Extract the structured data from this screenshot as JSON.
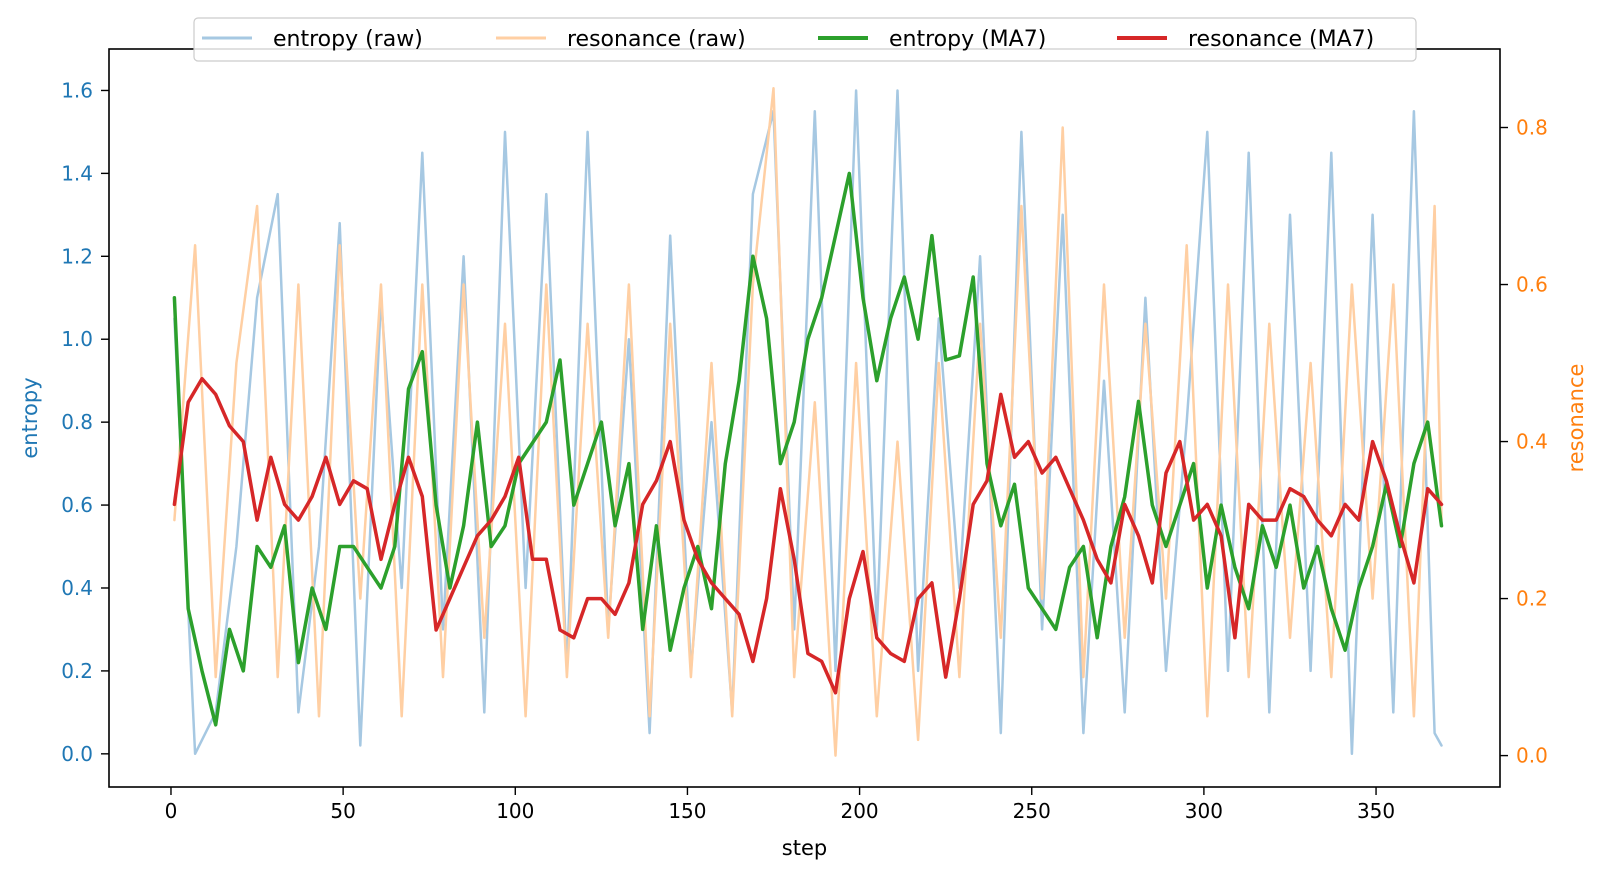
{
  "chart_data": {
    "type": "line",
    "title": "",
    "xlabel": "step",
    "ylabel_left": "entropy",
    "ylabel_right": "resonance",
    "xlim": [
      -18,
      386
    ],
    "ylim_left": [
      -0.08,
      1.7
    ],
    "ylim_right": [
      -0.04,
      0.9
    ],
    "x_ticks": [
      0,
      50,
      100,
      150,
      200,
      250,
      300,
      350
    ],
    "y_ticks_left": [
      0.0,
      0.2,
      0.4,
      0.6,
      0.8,
      1.0,
      1.2,
      1.4,
      1.6
    ],
    "y_ticks_right": [
      0.0,
      0.2,
      0.4,
      0.6,
      0.8
    ],
    "x_tick_labels": [
      "0",
      "50",
      "100",
      "150",
      "200",
      "250",
      "300",
      "350"
    ],
    "y_tick_labels_left": [
      "0.0",
      "0.2",
      "0.4",
      "0.6",
      "0.8",
      "1.0",
      "1.2",
      "1.4",
      "1.6"
    ],
    "y_tick_labels_right": [
      "0.0",
      "0.2",
      "0.4",
      "0.6",
      "0.8"
    ],
    "left_axis_color": "#1f77b4",
    "right_axis_color": "#ff7f0e",
    "grid": false,
    "legend_position": "top-center",
    "series": [
      {
        "name": "entropy (raw)",
        "axis": "left",
        "color": "#a6c8e2",
        "linewidth": 2.5,
        "x": [
          1,
          7,
          13,
          19,
          25,
          31,
          37,
          43,
          49,
          55,
          61,
          67,
          73,
          79,
          85,
          91,
          97,
          103,
          109,
          115,
          121,
          127,
          133,
          139,
          145,
          151,
          157,
          163,
          169,
          175,
          181,
          187,
          193,
          199,
          205,
          211,
          217,
          223,
          229,
          235,
          241,
          247,
          253,
          259,
          265,
          271,
          277,
          283,
          289,
          295,
          301,
          307,
          313,
          319,
          325,
          331,
          337,
          343,
          349,
          355,
          361,
          367,
          369
        ],
        "y": [
          1.05,
          0.0,
          0.1,
          0.5,
          1.1,
          1.35,
          0.1,
          0.5,
          1.28,
          0.02,
          1.1,
          0.4,
          1.45,
          0.3,
          1.2,
          0.1,
          1.5,
          0.4,
          1.35,
          0.2,
          1.5,
          0.3,
          1.0,
          0.05,
          1.25,
          0.2,
          0.8,
          0.1,
          1.35,
          1.55,
          0.3,
          1.55,
          0.2,
          1.6,
          0.3,
          1.6,
          0.2,
          1.05,
          0.4,
          1.2,
          0.05,
          1.5,
          0.3,
          1.3,
          0.05,
          0.9,
          0.1,
          1.1,
          0.2,
          0.8,
          1.5,
          0.2,
          1.45,
          0.1,
          1.3,
          0.2,
          1.45,
          0.0,
          1.3,
          0.1,
          1.55,
          0.05,
          0.02
        ]
      },
      {
        "name": "resonance (raw)",
        "axis": "right",
        "color": "#ffcfa3",
        "linewidth": 2.5,
        "x": [
          1,
          7,
          13,
          19,
          25,
          31,
          37,
          43,
          49,
          55,
          61,
          67,
          73,
          79,
          85,
          91,
          97,
          103,
          109,
          115,
          121,
          127,
          133,
          139,
          145,
          151,
          157,
          163,
          169,
          175,
          181,
          187,
          193,
          199,
          205,
          211,
          217,
          223,
          229,
          235,
          241,
          247,
          253,
          259,
          265,
          271,
          277,
          283,
          289,
          295,
          301,
          307,
          313,
          319,
          325,
          331,
          337,
          343,
          349,
          355,
          361,
          367,
          369
        ],
        "y": [
          0.3,
          0.65,
          0.1,
          0.5,
          0.7,
          0.1,
          0.6,
          0.05,
          0.65,
          0.2,
          0.6,
          0.05,
          0.6,
          0.1,
          0.6,
          0.15,
          0.55,
          0.05,
          0.6,
          0.1,
          0.55,
          0.15,
          0.6,
          0.05,
          0.55,
          0.1,
          0.5,
          0.05,
          0.6,
          0.85,
          0.1,
          0.45,
          0.0,
          0.5,
          0.05,
          0.4,
          0.02,
          0.5,
          0.1,
          0.55,
          0.15,
          0.7,
          0.2,
          0.8,
          0.1,
          0.6,
          0.15,
          0.55,
          0.2,
          0.65,
          0.05,
          0.6,
          0.1,
          0.55,
          0.15,
          0.5,
          0.1,
          0.6,
          0.2,
          0.6,
          0.05,
          0.7,
          0.3
        ]
      },
      {
        "name": "entropy (MA7)",
        "axis": "left",
        "color": "#2ca02c",
        "linewidth": 3.5,
        "x": [
          1,
          5,
          9,
          13,
          17,
          21,
          25,
          29,
          33,
          37,
          41,
          45,
          49,
          53,
          57,
          61,
          65,
          69,
          73,
          77,
          81,
          85,
          89,
          93,
          97,
          101,
          105,
          109,
          113,
          117,
          121,
          125,
          129,
          133,
          137,
          141,
          145,
          149,
          153,
          157,
          161,
          165,
          169,
          173,
          177,
          181,
          185,
          189,
          193,
          197,
          201,
          205,
          209,
          213,
          217,
          221,
          225,
          229,
          233,
          237,
          241,
          245,
          249,
          253,
          257,
          261,
          265,
          269,
          273,
          277,
          281,
          285,
          289,
          293,
          297,
          301,
          305,
          309,
          313,
          317,
          321,
          325,
          329,
          333,
          337,
          341,
          345,
          349,
          353,
          357,
          361,
          365,
          369
        ],
        "y": [
          1.1,
          0.35,
          0.2,
          0.07,
          0.3,
          0.2,
          0.5,
          0.45,
          0.55,
          0.22,
          0.4,
          0.3,
          0.5,
          0.5,
          0.45,
          0.4,
          0.5,
          0.88,
          0.97,
          0.6,
          0.4,
          0.55,
          0.8,
          0.5,
          0.55,
          0.7,
          0.75,
          0.8,
          0.95,
          0.6,
          0.7,
          0.8,
          0.55,
          0.7,
          0.3,
          0.55,
          0.25,
          0.4,
          0.5,
          0.35,
          0.7,
          0.9,
          1.2,
          1.05,
          0.7,
          0.8,
          1.0,
          1.1,
          1.25,
          1.4,
          1.1,
          0.9,
          1.05,
          1.15,
          1.0,
          1.25,
          0.95,
          0.96,
          1.15,
          0.7,
          0.55,
          0.65,
          0.4,
          0.35,
          0.3,
          0.45,
          0.5,
          0.28,
          0.5,
          0.62,
          0.85,
          0.6,
          0.5,
          0.6,
          0.7,
          0.4,
          0.6,
          0.45,
          0.35,
          0.55,
          0.45,
          0.6,
          0.4,
          0.5,
          0.35,
          0.25,
          0.4,
          0.5,
          0.65,
          0.5,
          0.7,
          0.8,
          0.55
        ]
      },
      {
        "name": "resonance (MA7)",
        "axis": "right",
        "color": "#d62728",
        "linewidth": 3.5,
        "x": [
          1,
          5,
          9,
          13,
          17,
          21,
          25,
          29,
          33,
          37,
          41,
          45,
          49,
          53,
          57,
          61,
          65,
          69,
          73,
          77,
          81,
          85,
          89,
          93,
          97,
          101,
          105,
          109,
          113,
          117,
          121,
          125,
          129,
          133,
          137,
          141,
          145,
          149,
          153,
          157,
          161,
          165,
          169,
          173,
          177,
          181,
          185,
          189,
          193,
          197,
          201,
          205,
          209,
          213,
          217,
          221,
          225,
          229,
          233,
          237,
          241,
          245,
          249,
          253,
          257,
          261,
          265,
          269,
          273,
          277,
          281,
          285,
          289,
          293,
          297,
          301,
          305,
          309,
          313,
          317,
          321,
          325,
          329,
          333,
          337,
          341,
          345,
          349,
          353,
          357,
          361,
          365,
          369
        ],
        "y": [
          0.32,
          0.45,
          0.48,
          0.46,
          0.42,
          0.4,
          0.3,
          0.38,
          0.32,
          0.3,
          0.33,
          0.38,
          0.32,
          0.35,
          0.34,
          0.25,
          0.32,
          0.38,
          0.33,
          0.16,
          0.2,
          0.24,
          0.28,
          0.3,
          0.33,
          0.38,
          0.25,
          0.25,
          0.16,
          0.15,
          0.2,
          0.2,
          0.18,
          0.22,
          0.32,
          0.35,
          0.4,
          0.3,
          0.25,
          0.22,
          0.2,
          0.18,
          0.12,
          0.2,
          0.34,
          0.25,
          0.13,
          0.12,
          0.08,
          0.2,
          0.26,
          0.15,
          0.13,
          0.12,
          0.2,
          0.22,
          0.1,
          0.2,
          0.32,
          0.35,
          0.46,
          0.38,
          0.4,
          0.36,
          0.38,
          0.34,
          0.3,
          0.25,
          0.22,
          0.32,
          0.28,
          0.22,
          0.36,
          0.4,
          0.3,
          0.32,
          0.28,
          0.15,
          0.32,
          0.3,
          0.3,
          0.34,
          0.33,
          0.3,
          0.28,
          0.32,
          0.3,
          0.4,
          0.35,
          0.28,
          0.22,
          0.34,
          0.32
        ]
      }
    ]
  }
}
